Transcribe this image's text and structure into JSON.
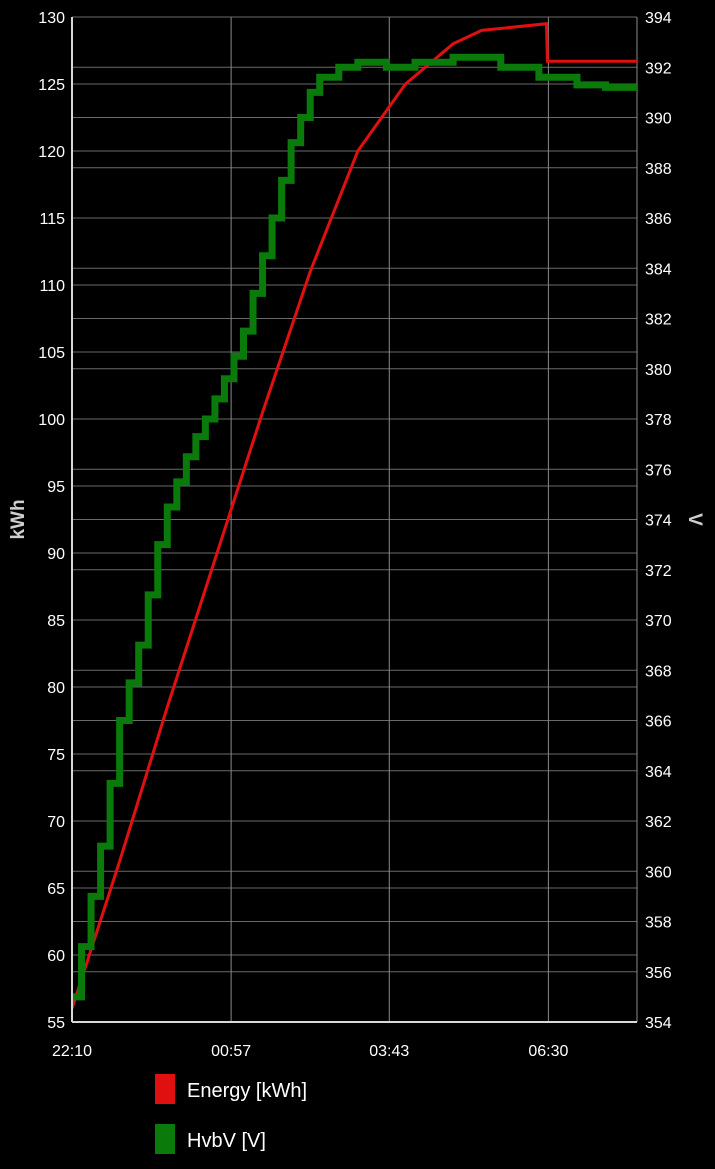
{
  "chart_data": {
    "type": "line",
    "grid": true,
    "legend_position": "bottom-left",
    "x_axis": {
      "label": "",
      "unit": "time",
      "range_minutes": [
        0,
        593
      ],
      "ticks": [
        {
          "label": "22:10",
          "minutes": 0
        },
        {
          "label": "00:57",
          "minutes": 167
        },
        {
          "label": "03:43",
          "minutes": 333
        },
        {
          "label": "06:30",
          "minutes": 500
        }
      ]
    },
    "y_left": {
      "label": "kWh",
      "min": 55,
      "max": 130,
      "ticks": [
        55,
        60,
        65,
        70,
        75,
        80,
        85,
        90,
        95,
        100,
        105,
        110,
        115,
        120,
        125,
        130
      ]
    },
    "y_right": {
      "label": "V",
      "min": 354,
      "max": 394,
      "ticks": [
        354,
        356,
        358,
        360,
        362,
        364,
        366,
        368,
        370,
        372,
        374,
        376,
        378,
        380,
        382,
        384,
        386,
        388,
        390,
        392,
        394
      ]
    },
    "series": [
      {
        "name": "Energy [kWh]",
        "axis": "left",
        "color": "#e01010",
        "style": "smooth",
        "points": [
          [
            0,
            56.0
          ],
          [
            50,
            67.0
          ],
          [
            100,
            78.5
          ],
          [
            150,
            89.5
          ],
          [
            200,
            100.5
          ],
          [
            250,
            111.0
          ],
          [
            300,
            120.0
          ],
          [
            350,
            125.0
          ],
          [
            400,
            128.0
          ],
          [
            430,
            129.0
          ],
          [
            498,
            129.5
          ],
          [
            499,
            126.7
          ],
          [
            593,
            126.7
          ]
        ]
      },
      {
        "name": "HvbV [V]",
        "axis": "right",
        "color": "#0a7a0a",
        "style": "step",
        "points": [
          [
            0,
            355.0
          ],
          [
            10,
            357.0
          ],
          [
            20,
            359.0
          ],
          [
            30,
            361.0
          ],
          [
            40,
            363.5
          ],
          [
            50,
            366.0
          ],
          [
            60,
            367.5
          ],
          [
            70,
            369.0
          ],
          [
            80,
            371.0
          ],
          [
            90,
            373.0
          ],
          [
            100,
            374.5
          ],
          [
            110,
            375.5
          ],
          [
            120,
            376.5
          ],
          [
            130,
            377.3
          ],
          [
            140,
            378.0
          ],
          [
            150,
            378.8
          ],
          [
            160,
            379.6
          ],
          [
            170,
            380.5
          ],
          [
            180,
            381.5
          ],
          [
            190,
            383.0
          ],
          [
            200,
            384.5
          ],
          [
            210,
            386.0
          ],
          [
            220,
            387.5
          ],
          [
            230,
            389.0
          ],
          [
            240,
            390.0
          ],
          [
            250,
            391.0
          ],
          [
            260,
            391.6
          ],
          [
            280,
            392.0
          ],
          [
            300,
            392.2
          ],
          [
            330,
            392.0
          ],
          [
            360,
            392.2
          ],
          [
            400,
            392.4
          ],
          [
            450,
            392.0
          ],
          [
            490,
            391.6
          ],
          [
            530,
            391.3
          ],
          [
            560,
            391.2
          ],
          [
            593,
            391.2
          ]
        ]
      }
    ]
  }
}
